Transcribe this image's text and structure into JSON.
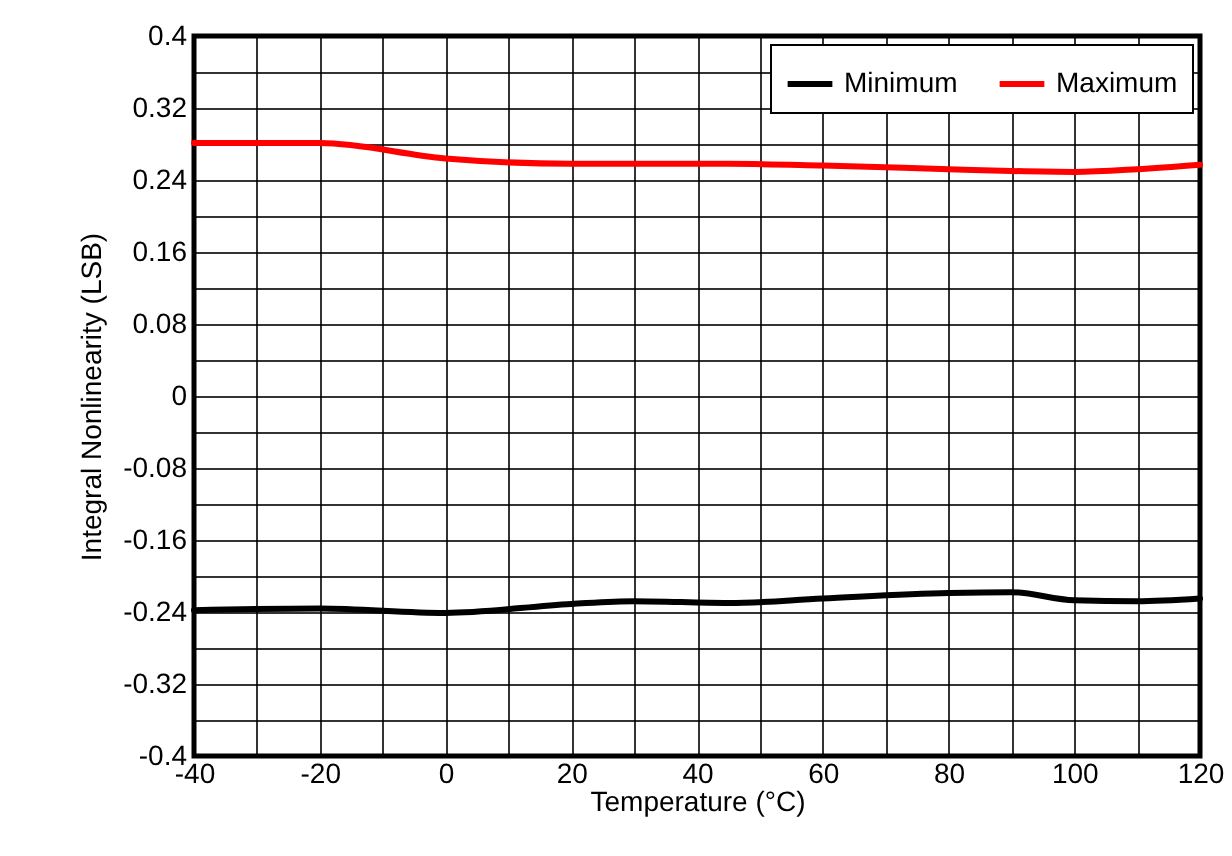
{
  "chart_data": {
    "type": "line",
    "xlabel": "Temperature (°C)",
    "ylabel": "Integral Nonlinearity (LSB)",
    "x": [
      -40,
      -20,
      0,
      20,
      30,
      45,
      60,
      80,
      90,
      100,
      110,
      120
    ],
    "series": [
      {
        "name": "Minimum",
        "color": "#000000",
        "values": [
          -0.238,
          -0.236,
          -0.241,
          -0.231,
          -0.228,
          -0.23,
          -0.225,
          -0.219,
          -0.218,
          -0.227,
          -0.228,
          -0.225
        ]
      },
      {
        "name": "Maximum",
        "color": "#ff0000",
        "values": [
          0.281,
          0.281,
          0.264,
          0.258,
          0.258,
          0.258,
          0.256,
          0.252,
          0.25,
          0.249,
          0.252,
          0.257
        ]
      }
    ],
    "xlim": [
      -40,
      120
    ],
    "xticks": [
      -40,
      {
        "value": -30,
        "label": null
      },
      -20,
      {
        "value": -10,
        "label": null
      },
      0,
      {
        "value": 10,
        "label": null
      },
      20,
      {
        "value": 30,
        "label": null
      },
      40,
      {
        "value": 50,
        "label": null
      },
      60,
      {
        "value": 70,
        "label": null
      },
      80,
      {
        "value": 90,
        "label": null
      },
      100,
      {
        "value": 110,
        "label": null
      },
      120
    ],
    "ylim": [
      -0.4,
      0.4
    ],
    "yticks": [
      -0.4,
      {
        "value": -0.36,
        "label": null
      },
      -0.32,
      {
        "value": -0.28,
        "label": null
      },
      -0.24,
      {
        "value": -0.2,
        "label": null
      },
      -0.16,
      {
        "value": -0.12,
        "label": null
      },
      -0.08,
      {
        "value": -0.04,
        "label": null
      },
      0,
      {
        "value": 0.04,
        "label": null
      },
      0.08,
      {
        "value": 0.12,
        "label": null
      },
      0.16,
      {
        "value": 0.2,
        "label": null
      },
      0.24,
      {
        "value": 0.28,
        "label": null
      },
      0.32,
      {
        "value": 0.36,
        "label": null
      },
      0.4
    ],
    "grid": true,
    "legend": "top right",
    "marker": "none",
    "line_style": "solid"
  }
}
